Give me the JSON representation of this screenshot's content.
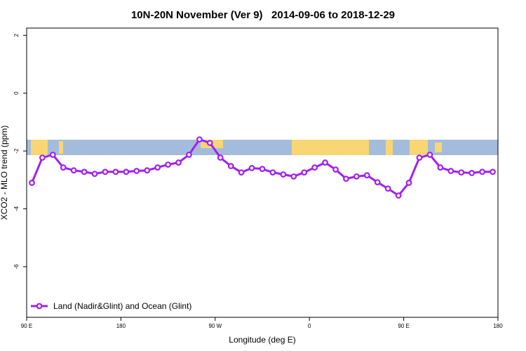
{
  "chart_data": {
    "type": "line",
    "title": "10N-20N November (Ver 9)   2014-09-06 to 2018-12-29",
    "x_label": "Longitude (deg E)",
    "y_label": "XCO2 - MLO trend (ppm)",
    "xlim": [
      90,
      540
    ],
    "ylim": [
      -7.75,
      2.25
    ],
    "xticks": [
      {
        "value": 90,
        "label": "90 E"
      },
      {
        "value": 180,
        "label": "180"
      },
      {
        "value": 270,
        "label": "90 W"
      },
      {
        "value": 360,
        "label": "0"
      },
      {
        "value": 450,
        "label": "90 E"
      },
      {
        "value": 540,
        "label": "180"
      }
    ],
    "yticks": [
      2,
      0,
      -2,
      -4,
      -6
    ],
    "legend": "bottom-left",
    "x": [
      95,
      105,
      115,
      125,
      135,
      145,
      155,
      165,
      175,
      185,
      195,
      205,
      215,
      225,
      235,
      245,
      255,
      265,
      275,
      285,
      295,
      305,
      315,
      325,
      335,
      345,
      355,
      365,
      375,
      385,
      395,
      405,
      415,
      425,
      435,
      445,
      455,
      465,
      475,
      485,
      495,
      505,
      515,
      525,
      535
    ],
    "series": [
      {
        "name": "Land (Nadir&Glint) and Ocean (Glint)",
        "color": "#a020f0",
        "values": [
          -3.1,
          -2.23,
          -2.13,
          -2.57,
          -2.67,
          -2.72,
          -2.79,
          -2.72,
          -2.72,
          -2.72,
          -2.69,
          -2.67,
          -2.57,
          -2.47,
          -2.4,
          -2.13,
          -1.6,
          -1.72,
          -2.23,
          -2.52,
          -2.74,
          -2.59,
          -2.62,
          -2.74,
          -2.81,
          -2.88,
          -2.74,
          -2.57,
          -2.4,
          -2.64,
          -2.96,
          -2.88,
          -2.84,
          -3.08,
          -3.3,
          -3.54,
          -3.1,
          -2.23,
          -2.13,
          -2.57,
          -2.69,
          -2.74,
          -2.76,
          -2.72,
          -2.72
        ]
      }
    ]
  }
}
